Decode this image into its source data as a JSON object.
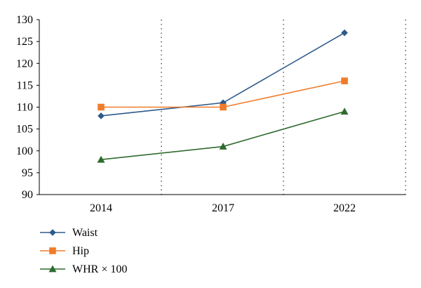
{
  "chart_data": {
    "type": "line",
    "categories": [
      "2014",
      "2017",
      "2022"
    ],
    "ylim": [
      90,
      130
    ],
    "yticks": [
      90,
      95,
      100,
      105,
      110,
      115,
      120,
      125,
      130
    ],
    "grid": "vertical-dotted",
    "legend_placement": "bottom-left",
    "series": [
      {
        "name": "Waist",
        "values": [
          108,
          111,
          127
        ],
        "color": "#2e5a8a",
        "marker": "diamond"
      },
      {
        "name": "Hip",
        "values": [
          110,
          110,
          116
        ],
        "color": "#f07c2a",
        "marker": "square"
      },
      {
        "name": "WHR × 100",
        "values": [
          98,
          101,
          109
        ],
        "color": "#2f6b2f",
        "marker": "triangle"
      }
    ]
  }
}
